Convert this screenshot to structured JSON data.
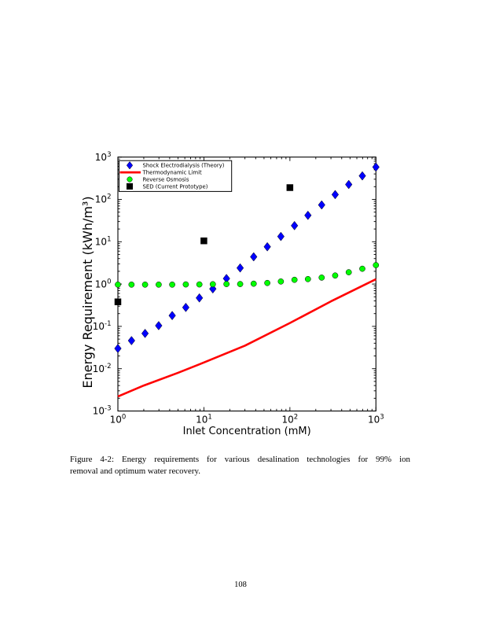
{
  "page": {
    "caption_line1": "Figure 4-2: Energy requirements for various desalination technologies for 99% ion",
    "caption_line2": "removal and optimum water recovery.",
    "number": "108"
  },
  "chart_data": {
    "type": "scatter",
    "title": "",
    "xlabel": "Inlet Concentration (mM)",
    "ylabel": "Energy Requirement (kWh/m³)",
    "xscale": "log",
    "yscale": "log",
    "xlim": [
      1,
      1000
    ],
    "ylim": [
      0.001,
      1000
    ],
    "grid": false,
    "xticks": [
      1,
      10,
      100,
      1000
    ],
    "yticks": [
      0.001,
      0.01,
      0.1,
      1,
      10,
      100,
      1000
    ],
    "legend_position": "upper left",
    "legend_entries": [
      "Shock Electrodialysis (Theory)",
      "Thermodynamic Limit",
      "Reverse Osmosis",
      "SED (Current Prototype)"
    ],
    "frame_color": "#000000",
    "series": [
      {
        "name": "Shock Electrodialysis (Theory)",
        "type": "scatter",
        "marker": "diamond",
        "color": "#0000ff",
        "x": [
          1,
          1.44,
          2.07,
          2.98,
          4.28,
          6.16,
          8.86,
          12.7,
          18.3,
          26.4,
          37.9,
          54.6,
          78.5,
          113,
          162,
          234,
          336,
          483,
          695,
          1000
        ],
        "y": [
          0.03,
          0.046,
          0.068,
          0.104,
          0.18,
          0.28,
          0.47,
          0.77,
          1.35,
          2.4,
          4.4,
          7.6,
          13.3,
          24,
          42,
          74,
          130,
          225,
          360,
          580
        ]
      },
      {
        "name": "Thermodynamic Limit",
        "type": "line",
        "color": "#ff0000",
        "x": [
          1,
          2,
          5,
          10,
          30,
          100,
          300,
          1000
        ],
        "y": [
          0.0022,
          0.004,
          0.008,
          0.014,
          0.035,
          0.12,
          0.39,
          1.3
        ]
      },
      {
        "name": "Reverse Osmosis",
        "type": "scatter",
        "marker": "circle",
        "color": "#00ff00",
        "x": [
          1,
          1.44,
          2.07,
          2.98,
          4.28,
          6.16,
          8.86,
          12.7,
          18.3,
          26.4,
          37.9,
          54.6,
          78.5,
          113,
          162,
          234,
          336,
          483,
          695,
          1000
        ],
        "y": [
          0.97,
          0.97,
          0.97,
          0.97,
          0.97,
          0.98,
          0.98,
          0.99,
          1.0,
          1.0,
          1.02,
          1.06,
          1.15,
          1.26,
          1.31,
          1.42,
          1.59,
          1.9,
          2.3,
          2.8
        ]
      },
      {
        "name": "SED (Current Prototype)",
        "type": "scatter",
        "marker": "square",
        "color": "#000000",
        "x": [
          1,
          10,
          100
        ],
        "y": [
          0.38,
          10.5,
          190
        ]
      }
    ]
  }
}
